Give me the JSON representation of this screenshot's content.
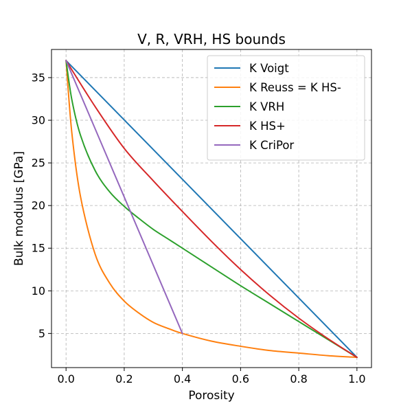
{
  "chart_data": {
    "type": "line",
    "title": "V, R, VRH, HS bounds",
    "xlabel": "Porosity",
    "ylabel": "Bulk modulus [GPa]",
    "xlim": [
      -0.05,
      1.05
    ],
    "ylim": [
      1.0,
      38.3
    ],
    "xticks": [
      0.0,
      0.2,
      0.4,
      0.6,
      0.8,
      1.0
    ],
    "xtick_labels": [
      "0.0",
      "0.2",
      "0.4",
      "0.6",
      "0.8",
      "1.0"
    ],
    "yticks": [
      5,
      10,
      15,
      20,
      25,
      30,
      35
    ],
    "ytick_labels": [
      "5",
      "10",
      "15",
      "20",
      "25",
      "30",
      "35"
    ],
    "grid": true,
    "legend_position": "top-right",
    "x": [
      0.0,
      0.02,
      0.05,
      0.1,
      0.15,
      0.2,
      0.25,
      0.3,
      0.35,
      0.4,
      0.5,
      0.6,
      0.7,
      0.8,
      0.9,
      1.0
    ],
    "series": [
      {
        "name": "K Voigt",
        "color": "#1f77b4",
        "x": [
          0.0,
          1.0
        ],
        "y": [
          37.0,
          2.2
        ]
      },
      {
        "name": "K Reuss = K HS-",
        "color": "#ff7f0e",
        "x": [
          0.0,
          0.02,
          0.05,
          0.1,
          0.15,
          0.2,
          0.25,
          0.3,
          0.35,
          0.4,
          0.5,
          0.6,
          0.7,
          0.8,
          0.9,
          1.0
        ],
        "y": [
          37.0,
          28.5,
          21.0,
          14.3,
          10.9,
          8.8,
          7.4,
          6.3,
          5.6,
          5.0,
          4.1,
          3.5,
          3.0,
          2.7,
          2.4,
          2.2
        ]
      },
      {
        "name": "K VRH",
        "color": "#2ca02c",
        "x": [
          0.0,
          0.02,
          0.05,
          0.1,
          0.15,
          0.2,
          0.25,
          0.3,
          0.35,
          0.4,
          0.5,
          0.6,
          0.7,
          0.8,
          0.9,
          1.0
        ],
        "y": [
          37.0,
          32.4,
          28.2,
          24.1,
          21.6,
          19.9,
          18.5,
          17.2,
          16.1,
          15.0,
          12.8,
          10.6,
          8.5,
          6.4,
          4.3,
          2.2
        ]
      },
      {
        "name": "K HS+",
        "color": "#d62728",
        "x": [
          0.0,
          0.1,
          0.2,
          0.3,
          0.4,
          0.5,
          0.6,
          0.7,
          0.8,
          0.9,
          1.0
        ],
        "y": [
          37.0,
          31.6,
          26.7,
          22.9,
          19.3,
          15.8,
          12.5,
          9.5,
          6.8,
          4.4,
          2.2
        ]
      },
      {
        "name": "K CriPor",
        "color": "#9467bd",
        "x": [
          0.0,
          0.4
        ],
        "y": [
          37.0,
          5.0
        ]
      }
    ]
  }
}
